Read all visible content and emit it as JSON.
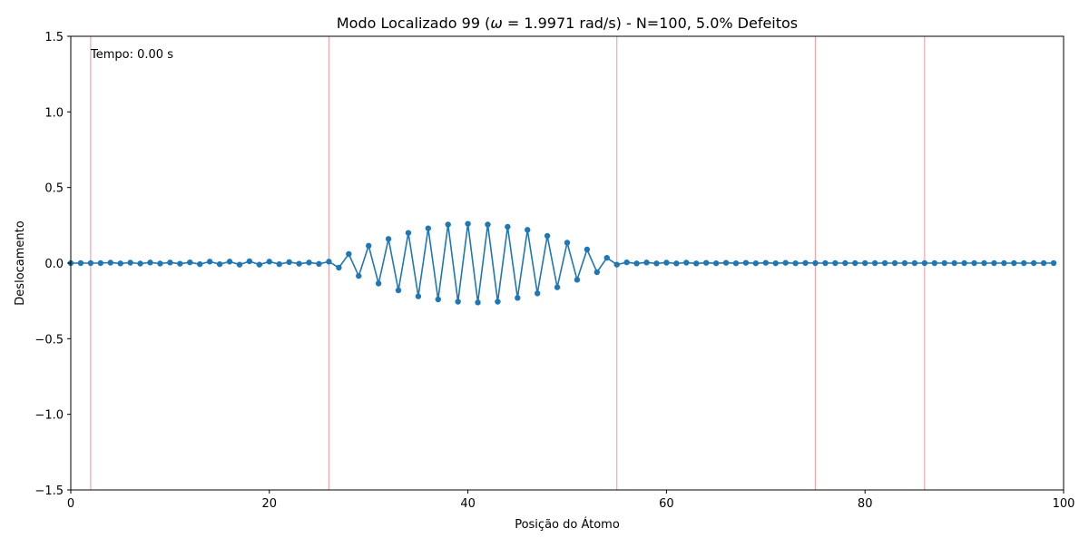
{
  "chart_data": {
    "type": "line",
    "title": "Modo Localizado 99 (ω = 1.9971 rad/s) - N=100, 5.0% Defeitos",
    "title_parts": {
      "prefix": "Modo Localizado 99 (",
      "omega_symbol": "ω",
      "suffix": " = 1.9971 rad/s) - N=100, 5.0% Defeitos"
    },
    "xlabel": "Posição do Átomo",
    "ylabel": "Deslocamento",
    "annotation": "Tempo: 0.00 s",
    "xlim": [
      0,
      100
    ],
    "ylim": [
      -1.5,
      1.5
    ],
    "x_ticks": [
      0,
      20,
      40,
      60,
      80,
      100
    ],
    "x_tick_labels": [
      "0",
      "20",
      "40",
      "60",
      "80",
      "100"
    ],
    "y_ticks": [
      -1.5,
      -1.0,
      -0.5,
      0.0,
      0.5,
      1.0,
      1.5
    ],
    "y_tick_labels": [
      "−1.5",
      "−1.0",
      "−0.5",
      "0.0",
      "0.5",
      "1.0",
      "1.5"
    ],
    "grid": false,
    "defect_lines_x": [
      2,
      26,
      55,
      75,
      86
    ],
    "colors": {
      "series": "#1f77b4",
      "defect": "#f4a6a6"
    },
    "series": [
      {
        "x": [
          0,
          1,
          2,
          3,
          4,
          5,
          6,
          7,
          8,
          9,
          10,
          11,
          12,
          13,
          14,
          15,
          16,
          17,
          18,
          19,
          20,
          21,
          22,
          23,
          24,
          25,
          26,
          27,
          28,
          29,
          30,
          31,
          32,
          33,
          34,
          35,
          36,
          37,
          38,
          39,
          40,
          41,
          42,
          43,
          44,
          45,
          46,
          47,
          48,
          49,
          50,
          51,
          52,
          53,
          54,
          55,
          56,
          57,
          58,
          59,
          60,
          61,
          62,
          63,
          64,
          65,
          66,
          67,
          68,
          69,
          70,
          71,
          72,
          73,
          74,
          75,
          76,
          77,
          78,
          79,
          80,
          81,
          82,
          83,
          84,
          85,
          86,
          87,
          88,
          89,
          90,
          91,
          92,
          93,
          94,
          95,
          96,
          97,
          98,
          99
        ],
        "values": [
          0.0,
          0.0,
          0.0,
          0.0,
          0.003,
          -0.002,
          0.003,
          -0.003,
          0.004,
          -0.003,
          0.004,
          -0.004,
          0.005,
          -0.007,
          0.01,
          -0.007,
          0.01,
          -0.01,
          0.012,
          -0.01,
          0.01,
          -0.007,
          0.007,
          -0.004,
          0.004,
          -0.005,
          0.01,
          -0.03,
          0.06,
          -0.085,
          0.115,
          -0.135,
          0.16,
          -0.18,
          0.2,
          -0.22,
          0.23,
          -0.24,
          0.255,
          -0.255,
          0.26,
          -0.26,
          0.255,
          -0.255,
          0.24,
          -0.23,
          0.22,
          -0.2,
          0.18,
          -0.16,
          0.135,
          -0.11,
          0.09,
          -0.06,
          0.035,
          -0.01,
          0.005,
          -0.002,
          0.004,
          -0.002,
          0.003,
          -0.002,
          0.003,
          -0.002,
          0.002,
          -0.001,
          0.002,
          -0.001,
          0.002,
          -0.001,
          0.002,
          -0.001,
          0.002,
          -0.001,
          0.001,
          0.0,
          0.0,
          0.0,
          0.0,
          0.0,
          0.0,
          0.0,
          0.0,
          0.0,
          0.0,
          0.0,
          0.0,
          0.0,
          0.0,
          0.0,
          0.0,
          0.0,
          0.0,
          0.0,
          0.0,
          0.0,
          0.0,
          0.0,
          0.0,
          0.0
        ]
      }
    ]
  }
}
